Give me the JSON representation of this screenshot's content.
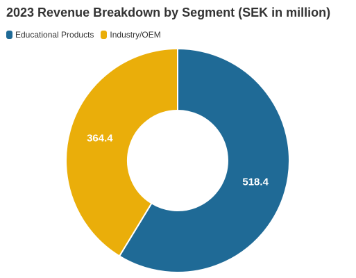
{
  "chart_data": {
    "type": "pie",
    "title": "2023 Revenue Breakdown by Segment (SEK in million)",
    "donut": true,
    "legend_placement": "top-left",
    "categories": [
      "Educational Products",
      "Industry/OEM"
    ],
    "values": [
      518.4,
      364.4
    ],
    "value_labels": [
      "518.4",
      "364.4"
    ],
    "colors": [
      "#1F6A96",
      "#EAAE0A"
    ]
  }
}
